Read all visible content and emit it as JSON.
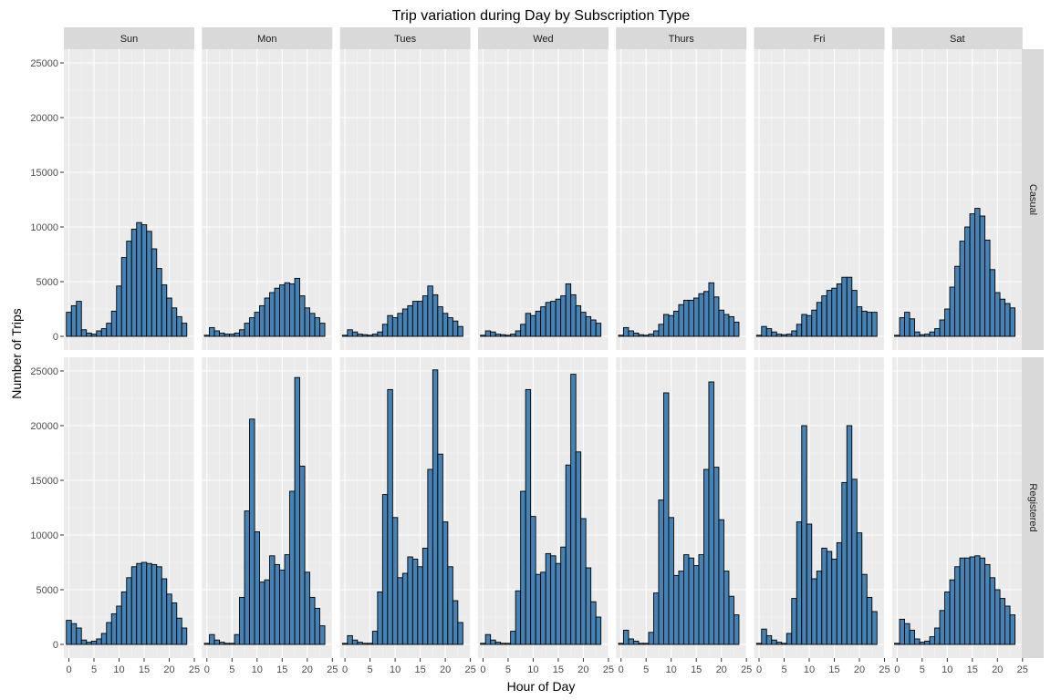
{
  "chart_data": {
    "type": "bar",
    "title": "Trip variation during Day by Subscription Type",
    "xlabel": "Hour of Day",
    "ylabel": "Number of Trips",
    "xlim": [
      -1,
      25
    ],
    "ylim": [
      -1250,
      26250
    ],
    "x_ticks": [
      0,
      5,
      10,
      15,
      20,
      25
    ],
    "y_ticks": [
      0,
      5000,
      10000,
      15000,
      20000,
      25000
    ],
    "x_tick_labels": [
      "0",
      "5",
      "10",
      "15",
      "20",
      "25"
    ],
    "y_tick_labels": [
      "0",
      "5000",
      "10000",
      "15000",
      "20000",
      "25000"
    ],
    "bar_fill": "#4682B4",
    "bar_outline": "#000000",
    "panel_background": "#EBEBEB",
    "strip_background": "#D9D9D9",
    "grid": true,
    "columns": [
      "Sun",
      "Mon",
      "Tues",
      "Wed",
      "Thurs",
      "Fri",
      "Sat"
    ],
    "rows": [
      "Casual",
      "Registered"
    ],
    "hours": [
      0,
      1,
      2,
      3,
      4,
      5,
      6,
      7,
      8,
      9,
      10,
      11,
      12,
      13,
      14,
      15,
      16,
      17,
      18,
      19,
      20,
      21,
      22,
      23
    ],
    "panels": {
      "Casual": {
        "Sun": [
          2200,
          2800,
          3200,
          600,
          300,
          200,
          500,
          700,
          1200,
          2300,
          4600,
          7200,
          8700,
          9800,
          10400,
          10200,
          9600,
          8000,
          6200,
          4700,
          3500,
          2600,
          1800,
          1200
        ],
        "Mon": [
          100,
          800,
          500,
          300,
          200,
          200,
          300,
          600,
          1200,
          1700,
          2200,
          2800,
          3500,
          4000,
          4400,
          4700,
          4900,
          4800,
          5300,
          3700,
          2600,
          2100,
          1700,
          1200
        ],
        "Tues": [
          100,
          600,
          400,
          200,
          150,
          100,
          200,
          400,
          1100,
          1900,
          1700,
          2100,
          2500,
          2800,
          3200,
          3200,
          3700,
          4600,
          3800,
          2700,
          2100,
          1700,
          1400,
          900
        ],
        "Wed": [
          100,
          500,
          400,
          200,
          150,
          100,
          200,
          500,
          1100,
          2100,
          1900,
          2300,
          2700,
          3100,
          3200,
          3400,
          3700,
          4800,
          3800,
          2800,
          2200,
          1800,
          1500,
          1200
        ],
        "Thurs": [
          100,
          800,
          500,
          300,
          150,
          100,
          200,
          500,
          1100,
          2000,
          1900,
          2300,
          2900,
          3300,
          3300,
          3500,
          3900,
          4100,
          4900,
          3600,
          2400,
          2000,
          1800,
          1300
        ],
        "Fri": [
          100,
          900,
          700,
          400,
          200,
          150,
          200,
          500,
          1100,
          2000,
          1900,
          2400,
          3100,
          3700,
          4200,
          4400,
          4800,
          5400,
          5400,
          4200,
          2700,
          2300,
          2200,
          2200
        ],
        "Sat": [
          100,
          1700,
          2200,
          1600,
          400,
          150,
          200,
          400,
          700,
          1500,
          2500,
          4500,
          6400,
          8700,
          10000,
          11200,
          11700,
          11000,
          8800,
          6100,
          4000,
          3400,
          3000,
          2600
        ]
      },
      "Registered": {
        "Sun": [
          2200,
          1900,
          1500,
          400,
          200,
          300,
          500,
          1000,
          2000,
          2800,
          3500,
          4800,
          6100,
          7100,
          7400,
          7500,
          7400,
          7300,
          7100,
          6000,
          4600,
          3800,
          2400,
          1500
        ],
        "Mon": [
          100,
          900,
          400,
          200,
          100,
          100,
          900,
          4300,
          12200,
          20600,
          10300,
          5700,
          5900,
          8100,
          7300,
          6800,
          8200,
          14000,
          24400,
          16300,
          6600,
          4300,
          3300,
          1700
        ],
        "Tues": [
          100,
          800,
          400,
          200,
          100,
          100,
          1200,
          4800,
          13700,
          23300,
          11600,
          6100,
          6500,
          8000,
          7800,
          7100,
          8800,
          16000,
          25100,
          17400,
          11200,
          7100,
          4000,
          2000
        ],
        "Wed": [
          100,
          900,
          400,
          200,
          100,
          100,
          1200,
          4900,
          14000,
          23300,
          11700,
          6400,
          6600,
          8300,
          8100,
          7400,
          8900,
          16400,
          24700,
          17600,
          11500,
          7000,
          3900,
          2500
        ],
        "Thurs": [
          100,
          1300,
          500,
          300,
          100,
          100,
          1100,
          4700,
          13200,
          23000,
          11600,
          6300,
          6700,
          8200,
          7900,
          7200,
          8200,
          16000,
          24000,
          16200,
          11400,
          6700,
          4400,
          2700
        ],
        "Fri": [
          100,
          1400,
          800,
          400,
          200,
          100,
          1000,
          4200,
          11200,
          20000,
          11000,
          6000,
          6700,
          8800,
          8500,
          7800,
          9300,
          14800,
          20000,
          15100,
          10200,
          6400,
          4300,
          3000
        ],
        "Sat": [
          100,
          2300,
          1900,
          1300,
          500,
          200,
          300,
          700,
          1500,
          3100,
          4800,
          5900,
          7100,
          7900,
          7900,
          8000,
          8100,
          7900,
          7300,
          6100,
          5000,
          4200,
          3500,
          2700
        ]
      }
    }
  }
}
